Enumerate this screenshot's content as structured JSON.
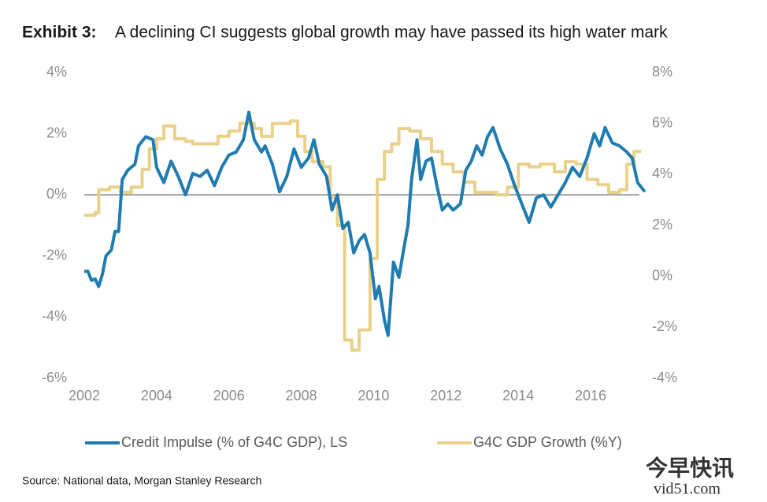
{
  "chart_data": {
    "type": "line",
    "exhibit": "Exhibit 3:",
    "title": "A declining CI suggests global growth may have passed its high water mark",
    "source": "Source: National data, Morgan Stanley Research",
    "watermark": [
      "今早快讯",
      "vid51.com"
    ],
    "xlim": [
      2002,
      2017.6
    ],
    "xticks": [
      2002,
      2004,
      2006,
      2008,
      2010,
      2012,
      2014,
      2016
    ],
    "ylim": [
      -6,
      4
    ],
    "yticks": [
      {
        "value": 4,
        "label": "4%"
      },
      {
        "value": 2,
        "label": "2%"
      },
      {
        "value": 0,
        "label": "0%"
      },
      {
        "value": -2,
        "label": "-2%"
      },
      {
        "value": -4,
        "label": "-4%"
      },
      {
        "value": -6,
        "label": "-6%"
      }
    ],
    "y2lim": [
      -4,
      8
    ],
    "y2ticks": [
      {
        "value": 8,
        "label": "8%"
      },
      {
        "value": 6,
        "label": "6%"
      },
      {
        "value": 4,
        "label": "4%"
      },
      {
        "value": 2,
        "label": "2%"
      },
      {
        "value": 0,
        "label": "0%"
      },
      {
        "value": -2,
        "label": "-2%"
      },
      {
        "value": -4,
        "label": "-4%"
      }
    ],
    "zero_line": true,
    "series": [
      {
        "name": "Credit Impulse (% of G4C GDP), LS",
        "color": "#1f7bb0",
        "axis": "y",
        "x": [
          2002.0,
          2002.1,
          2002.2,
          2002.3,
          2002.4,
          2002.5,
          2002.6,
          2002.75,
          2002.85,
          2002.95,
          2003.05,
          2003.2,
          2003.4,
          2003.5,
          2003.7,
          2003.9,
          2004.0,
          2004.2,
          2004.4,
          2004.6,
          2004.8,
          2005.0,
          2005.2,
          2005.4,
          2005.6,
          2005.8,
          2006.0,
          2006.2,
          2006.4,
          2006.55,
          2006.7,
          2006.9,
          2007.0,
          2007.2,
          2007.4,
          2007.6,
          2007.8,
          2008.0,
          2008.2,
          2008.35,
          2008.5,
          2008.7,
          2008.85,
          2009.0,
          2009.15,
          2009.3,
          2009.45,
          2009.6,
          2009.75,
          2009.9,
          2010.05,
          2010.15,
          2010.3,
          2010.4,
          2010.55,
          2010.7,
          2010.8,
          2010.95,
          2011.05,
          2011.2,
          2011.3,
          2011.45,
          2011.6,
          2011.75,
          2011.9,
          2012.05,
          2012.2,
          2012.4,
          2012.55,
          2012.7,
          2012.85,
          2013.0,
          2013.15,
          2013.3,
          2013.5,
          2013.7,
          2013.9,
          2014.1,
          2014.3,
          2014.5,
          2014.7,
          2014.9,
          2015.1,
          2015.3,
          2015.5,
          2015.7,
          2015.9,
          2016.1,
          2016.25,
          2016.4,
          2016.6,
          2016.8,
          2017.0,
          2017.15,
          2017.3,
          2017.5
        ],
        "values": [
          -2.5,
          -2.5,
          -2.8,
          -2.75,
          -3.0,
          -2.6,
          -2.0,
          -1.8,
          -1.2,
          -1.2,
          0.5,
          0.8,
          1.0,
          1.6,
          1.9,
          1.8,
          0.9,
          0.4,
          1.1,
          0.6,
          0.0,
          0.7,
          0.6,
          0.8,
          0.3,
          0.9,
          1.3,
          1.4,
          1.8,
          2.7,
          1.8,
          1.4,
          1.6,
          1.0,
          0.1,
          0.6,
          1.5,
          0.9,
          1.2,
          1.8,
          1.0,
          0.6,
          -0.5,
          0.0,
          -1.1,
          -0.9,
          -1.9,
          -1.5,
          -1.3,
          -1.9,
          -3.4,
          -3.0,
          -4.1,
          -4.6,
          -2.2,
          -2.7,
          -2.0,
          -1.0,
          0.5,
          1.8,
          0.5,
          1.1,
          1.2,
          0.3,
          -0.5,
          -0.3,
          -0.5,
          -0.3,
          0.8,
          1.1,
          1.6,
          1.3,
          1.9,
          2.2,
          1.5,
          1.0,
          0.3,
          -0.3,
          -0.9,
          -0.1,
          0.0,
          -0.4,
          0.0,
          0.4,
          0.9,
          0.6,
          1.2,
          2.0,
          1.6,
          2.2,
          1.7,
          1.6,
          1.4,
          1.2,
          0.4,
          0.1
        ]
      },
      {
        "name": "G4C GDP Growth (%Y)",
        "color": "#ead18a",
        "axis": "y2",
        "step": true,
        "x": [
          2002.0,
          2002.3,
          2002.4,
          2002.7,
          2003.0,
          2003.3,
          2003.6,
          2003.8,
          2004.0,
          2004.2,
          2004.5,
          2004.8,
          2005.0,
          2005.5,
          2005.7,
          2006.0,
          2006.3,
          2006.7,
          2006.9,
          2007.2,
          2007.7,
          2007.9,
          2008.1,
          2008.3,
          2008.6,
          2008.8,
          2009.0,
          2009.2,
          2009.4,
          2009.6,
          2009.9,
          2010.1,
          2010.3,
          2010.5,
          2010.7,
          2011.0,
          2011.3,
          2011.6,
          2011.9,
          2012.2,
          2012.5,
          2012.8,
          2013.1,
          2013.4,
          2013.7,
          2014.0,
          2014.3,
          2014.6,
          2015.0,
          2015.3,
          2015.6,
          2015.9,
          2016.2,
          2016.5,
          2016.8,
          2017.0,
          2017.2,
          2017.4
        ],
        "values": [
          2.4,
          2.5,
          3.4,
          3.5,
          3.3,
          3.5,
          4.2,
          5.0,
          5.4,
          5.9,
          5.4,
          5.3,
          5.2,
          5.2,
          5.5,
          5.7,
          6.0,
          5.8,
          5.5,
          6.0,
          6.1,
          5.5,
          4.9,
          4.5,
          4.3,
          3.1,
          2.0,
          -2.5,
          -2.9,
          -2.1,
          0.7,
          3.8,
          4.9,
          5.2,
          5.8,
          5.7,
          5.4,
          4.9,
          4.4,
          4.1,
          3.7,
          3.3,
          3.3,
          3.2,
          3.5,
          4.4,
          4.3,
          4.4,
          4.1,
          4.5,
          4.4,
          3.8,
          3.6,
          3.3,
          3.4,
          4.4,
          4.9,
          4.9
        ]
      }
    ]
  }
}
